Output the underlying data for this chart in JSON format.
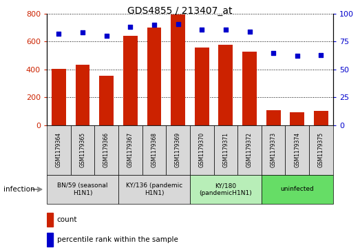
{
  "title": "GDS4855 / 213407_at",
  "samples": [
    "GSM1179364",
    "GSM1179365",
    "GSM1179366",
    "GSM1179367",
    "GSM1179368",
    "GSM1179369",
    "GSM1179370",
    "GSM1179371",
    "GSM1179372",
    "GSM1179373",
    "GSM1179374",
    "GSM1179375"
  ],
  "counts": [
    405,
    435,
    355,
    640,
    700,
    795,
    555,
    578,
    525,
    105,
    90,
    100
  ],
  "percentiles": [
    82,
    83,
    80,
    88,
    90,
    91,
    86,
    86,
    84,
    65,
    62,
    63
  ],
  "bar_color": "#cc2200",
  "dot_color": "#0000cc",
  "ylim_left": [
    0,
    800
  ],
  "ylim_right": [
    0,
    100
  ],
  "yticks_left": [
    0,
    200,
    400,
    600,
    800
  ],
  "yticks_right": [
    0,
    25,
    50,
    75,
    100
  ],
  "groups": [
    {
      "label": "BN/59 (seasonal\nH1N1)",
      "start": 0,
      "end": 3,
      "color": "#d8d8d8"
    },
    {
      "label": "KY/136 (pandemic\nH1N1)",
      "start": 3,
      "end": 6,
      "color": "#d8d8d8"
    },
    {
      "label": "KY/180\n(pandemicH1N1)",
      "start": 6,
      "end": 9,
      "color": "#b8eeb8"
    },
    {
      "label": "uninfected",
      "start": 9,
      "end": 12,
      "color": "#66dd66"
    }
  ],
  "sample_box_color": "#d8d8d8",
  "infection_label": "infection",
  "legend_count_label": "count",
  "legend_percentile_label": "percentile rank within the sample"
}
